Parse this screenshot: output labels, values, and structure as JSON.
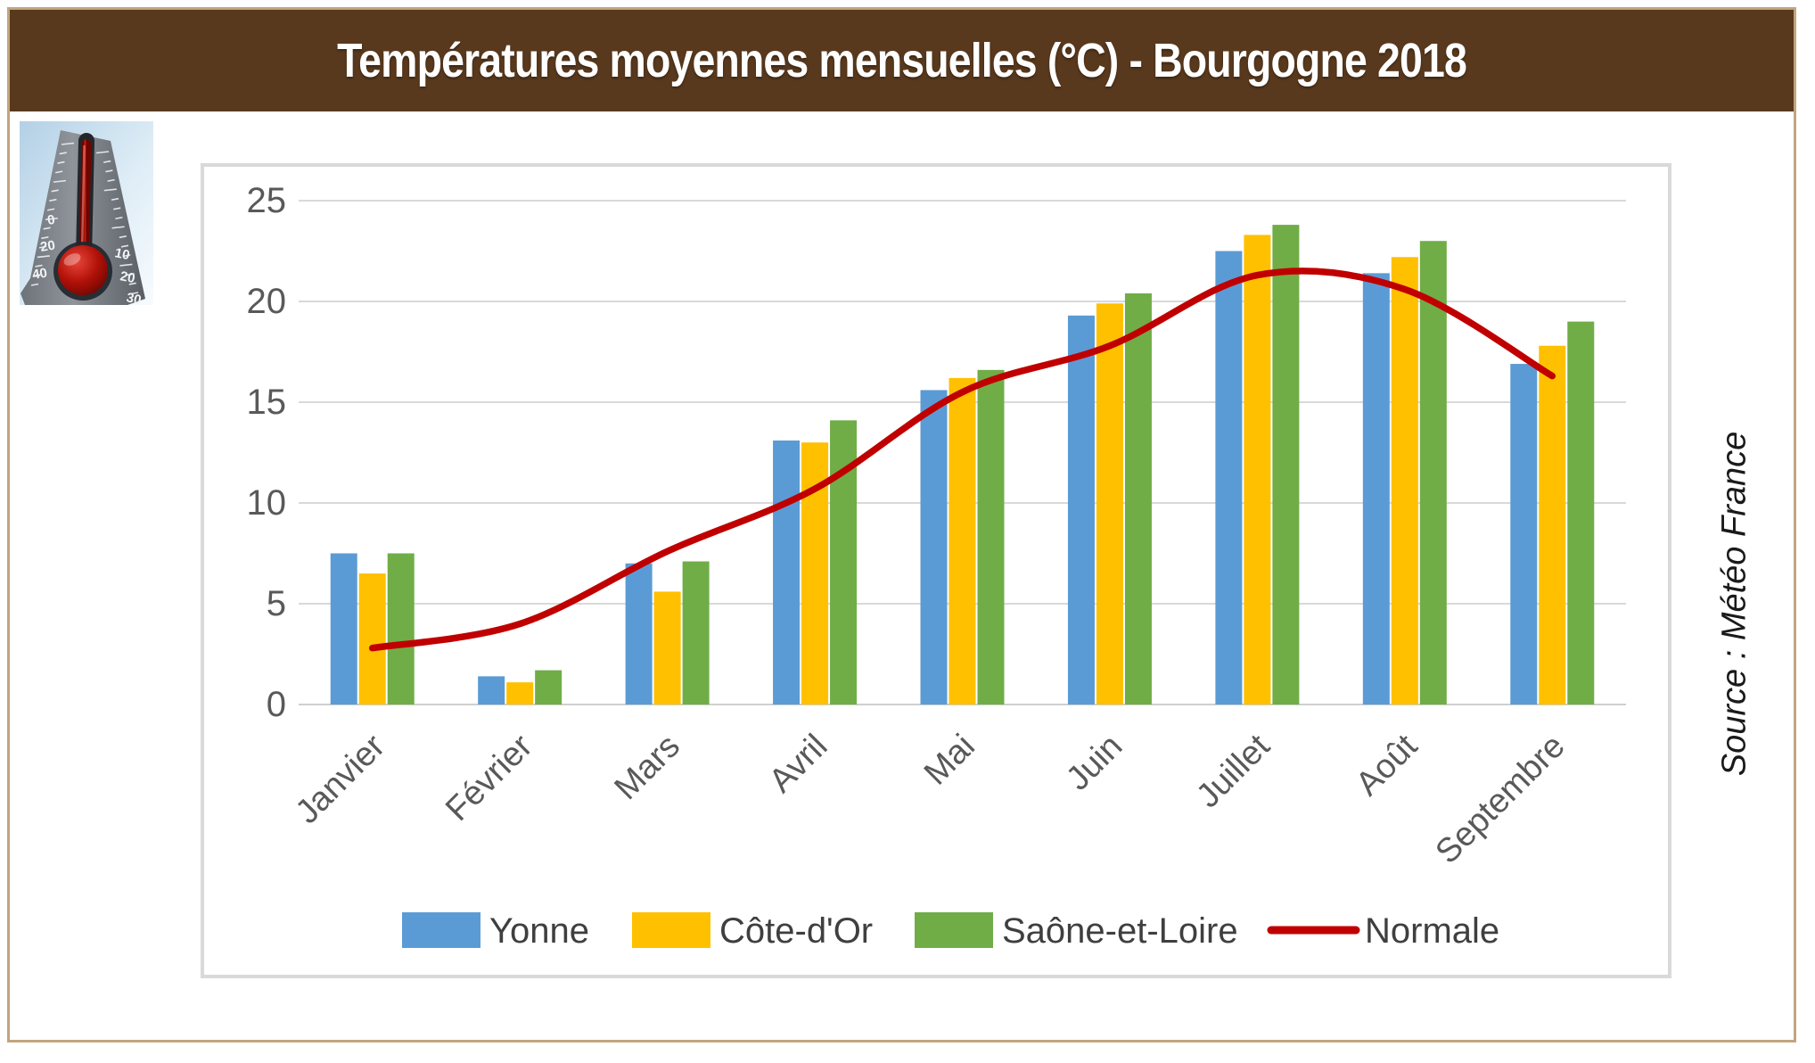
{
  "header": {
    "title": "Températures moyennes mensuelles (°C) - Bourgogne 2018"
  },
  "source_note": "Source : Météo France",
  "icons": {
    "thermometer": "thermometer-photo-illustration"
  },
  "colors": {
    "title_bar_bg": "#59391d",
    "title_text": "#ffffff",
    "outer_border": "#c2a57e",
    "panel_border": "#d9d9d9",
    "gridline": "#d9d9d9",
    "axis_line": "#cfcfcf",
    "tick_label": "#595959",
    "legend_text": "#3f3f3f",
    "yonne": "#5b9bd5",
    "cote_dor": "#ffc000",
    "saone_et_loire": "#70ad47",
    "normale": "#c00000"
  },
  "chart_data": {
    "type": "bar",
    "title": "Températures moyennes mensuelles (°C) - Bourgogne 2018",
    "xlabel": "",
    "ylabel": "",
    "ylim": [
      0,
      25
    ],
    "ytick_step": 5,
    "yticks": [
      0,
      5,
      10,
      15,
      20,
      25
    ],
    "grid": true,
    "legend_position": "bottom",
    "categories": [
      "Janvier",
      "Février",
      "Mars",
      "Avril",
      "Mai",
      "Juin",
      "Juillet",
      "Août",
      "Septembre"
    ],
    "series": [
      {
        "name": "Yonne",
        "type": "bar",
        "color": "#5b9bd5",
        "values": [
          7.5,
          1.4,
          7.0,
          13.1,
          15.6,
          19.3,
          22.5,
          21.4,
          16.9
        ]
      },
      {
        "name": "Côte-d'Or",
        "type": "bar",
        "color": "#ffc000",
        "values": [
          6.5,
          1.1,
          5.6,
          13.0,
          16.2,
          19.9,
          23.3,
          22.2,
          17.8
        ]
      },
      {
        "name": "Saône-et-Loire",
        "type": "bar",
        "color": "#70ad47",
        "values": [
          7.5,
          1.7,
          7.1,
          14.1,
          16.6,
          20.4,
          23.8,
          23.0,
          19.0
        ]
      },
      {
        "name": "Normale",
        "type": "line",
        "color": "#c00000",
        "values": [
          2.8,
          4.0,
          7.6,
          10.7,
          15.5,
          17.8,
          21.3,
          20.6,
          16.3
        ]
      }
    ]
  }
}
